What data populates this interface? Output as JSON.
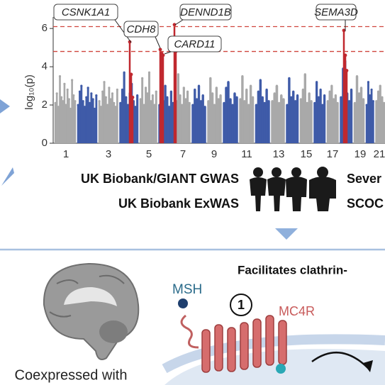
{
  "chart_data": {
    "type": "manhattan",
    "ylabel": "log₁₀(p)",
    "ylim": [
      0,
      6.6
    ],
    "yticks": [
      0,
      2,
      4,
      6
    ],
    "thresholds": [
      6.1,
      4.8
    ],
    "threshold_color": "#d0453e",
    "hit_color": "#c0282f",
    "chromosomes": [
      {
        "label": "1",
        "color": "#a9a9a9",
        "values": [
          2.1,
          2.6,
          1.9,
          3.5,
          2.4,
          2.2,
          3.1,
          2.0,
          2.8,
          2.3,
          1.8,
          3.3,
          2.5,
          2.2
        ],
        "hits": []
      },
      {
        "label": null,
        "color": "#3f5ba8",
        "values": [
          2.0,
          2.7,
          3.0,
          2.2,
          1.9,
          2.4,
          2.9,
          2.1,
          2.6,
          2.3,
          1.8,
          2.5
        ],
        "hits": []
      },
      {
        "label": "3",
        "color": "#a9a9a9",
        "values": [
          2.2,
          1.9,
          2.7,
          3.2,
          2.4,
          2.0,
          2.9,
          2.3,
          2.6,
          2.1,
          1.9,
          2.8
        ],
        "hits": []
      },
      {
        "label": null,
        "color": "#3f5ba8",
        "values": [
          2.1,
          2.8,
          3.7,
          2.4,
          2.0,
          2.6,
          3.1,
          2.2,
          1.9,
          2.5
        ],
        "hits": [
          5.3,
          3.6,
          2.4
        ]
      },
      {
        "label": "5",
        "color": "#a9a9a9",
        "values": [
          2.3,
          3.4,
          2.0,
          2.9,
          2.6,
          3.7,
          2.2,
          2.5,
          2.0,
          2.7
        ],
        "hits": []
      },
      {
        "label": null,
        "color": "#3f5ba8",
        "values": [
          2.0,
          2.6,
          2.2,
          3.0,
          2.4,
          1.9,
          2.7,
          2.1
        ],
        "hits": [
          4.9,
          4.7,
          4.6
        ]
      },
      {
        "label": "7",
        "color": "#a9a9a9",
        "values": [
          2.2,
          3.6,
          2.5,
          2.0,
          2.9,
          2.3,
          2.7,
          2.1
        ],
        "hits": [
          6.2,
          4.8
        ]
      },
      {
        "label": null,
        "color": "#3f5ba8",
        "values": [
          2.0,
          2.8,
          2.3,
          3.0,
          2.2,
          2.5,
          1.9
        ],
        "hits": []
      },
      {
        "label": "9",
        "color": "#a9a9a9",
        "values": [
          2.2,
          3.4,
          2.6,
          2.0,
          2.9,
          2.3,
          2.5
        ],
        "hits": []
      },
      {
        "label": null,
        "color": "#3f5ba8",
        "values": [
          2.1,
          2.9,
          3.2,
          2.3,
          2.0,
          2.6,
          2.4
        ],
        "hits": []
      },
      {
        "label": "11",
        "color": "#a9a9a9",
        "values": [
          2.3,
          3.5,
          2.2,
          2.8,
          2.0,
          3.0,
          2.4
        ],
        "hits": []
      },
      {
        "label": null,
        "color": "#3f5ba8",
        "values": [
          2.0,
          2.7,
          3.3,
          2.4,
          2.1,
          2.8,
          2.2
        ],
        "hits": []
      },
      {
        "label": "13",
        "color": "#a9a9a9",
        "values": [
          2.2,
          2.6,
          3.0,
          2.1,
          2.5,
          2.3
        ],
        "hits": []
      },
      {
        "label": null,
        "color": "#3f5ba8",
        "values": [
          2.0,
          3.4,
          2.4,
          2.7,
          2.2,
          2.5
        ],
        "hits": []
      },
      {
        "label": "15",
        "color": "#a9a9a9",
        "values": [
          2.3,
          2.8,
          3.6,
          2.1,
          2.6,
          2.2
        ],
        "hits": []
      },
      {
        "label": null,
        "color": "#3f5ba8",
        "values": [
          2.1,
          3.2,
          2.4,
          2.8,
          2.0,
          2.5
        ],
        "hits": []
      },
      {
        "label": "17",
        "color": "#a9a9a9",
        "values": [
          2.2,
          2.7,
          3.0,
          2.3,
          2.5,
          2.1
        ],
        "hits": []
      },
      {
        "label": null,
        "color": "#3f5ba8",
        "values": [
          2.4,
          3.9,
          4.3,
          2.6,
          2.2,
          2.8
        ],
        "hits": [
          5.9,
          4.6,
          3.8
        ]
      },
      {
        "label": "19",
        "color": "#a9a9a9",
        "values": [
          2.1,
          3.5,
          2.6,
          2.9,
          2.3
        ],
        "hits": []
      },
      {
        "label": null,
        "color": "#3f5ba8",
        "values": [
          2.0,
          3.2,
          2.5,
          2.8,
          2.2
        ],
        "hits": []
      },
      {
        "label": "21",
        "color": "#a9a9a9",
        "values": [
          2.2,
          2.7,
          3.0,
          2.4,
          2.1
        ],
        "hits": []
      }
    ],
    "annotations": [
      "CSNK1A1",
      "CDH8",
      "DENND1B",
      "CARD11",
      "SEMA3D"
    ]
  },
  "panel": {
    "gwas_label": "UK Biobank/GIANT GWAS",
    "exwas_label": "UK Biobank ExWAS",
    "severe_label": "Sever",
    "scooc_label": "SCOC",
    "section_title": "Facilitates clathrin-",
    "msh_label": "MSH",
    "step_label": "1",
    "receptor_label": "MC4R",
    "brain_caption": "Coexpressed with"
  }
}
